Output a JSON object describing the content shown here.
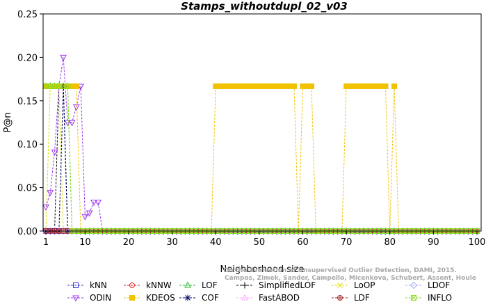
{
  "chart_data": {
    "type": "line",
    "title": "Stamps_withoutdupl_02_v03",
    "xlabel": "Neighborhood size",
    "ylabel": "P@n",
    "xlim": [
      1,
      100
    ],
    "ylim": [
      0,
      0.25
    ],
    "xticks": [
      1,
      10,
      20,
      30,
      40,
      50,
      60,
      70,
      80,
      90,
      100
    ],
    "yticks": [
      "0.00",
      "0.05",
      "0.10",
      "0.15",
      "0.20",
      "0.25"
    ],
    "grid": false,
    "legend_placement": "bottom",
    "watermark": [
      "Campos, Zimek, Sander, Campello, Micenkova, Schubert, Assent, Houle",
      "On the Evaluation of Unsupervised Outlier Detection, DAMI, 2015."
    ],
    "series": [
      {
        "name": "kNN",
        "color": "#3333dd",
        "marker": "square",
        "points": [
          [
            1,
            0
          ],
          [
            100,
            0
          ]
        ]
      },
      {
        "name": "kNNW",
        "color": "#dd2222",
        "marker": "circle",
        "points": [
          [
            1,
            0
          ],
          [
            100,
            0
          ]
        ]
      },
      {
        "name": "LOF",
        "color": "#22bb22",
        "marker": "triangle-up",
        "points": [
          [
            1,
            0.1667
          ],
          [
            2,
            0.1667
          ],
          [
            3,
            0.1667
          ],
          [
            4,
            0.1667
          ],
          [
            5,
            0.1667
          ],
          [
            6,
            0.1667
          ],
          [
            7,
            0
          ],
          [
            100,
            0
          ]
        ]
      },
      {
        "name": "SimplifiedLOF",
        "color": "#000000",
        "marker": "plus",
        "points": [
          [
            1,
            0
          ],
          [
            2,
            0
          ],
          [
            3,
            0
          ],
          [
            4,
            0.1667
          ],
          [
            5,
            0.1667
          ],
          [
            6,
            0
          ],
          [
            100,
            0
          ]
        ]
      },
      {
        "name": "LoOP",
        "color": "#dddd00",
        "marker": "x",
        "points": [
          [
            1,
            0
          ],
          [
            2,
            0.1667
          ],
          [
            3,
            0.1667
          ],
          [
            4,
            0.1667
          ],
          [
            5,
            0
          ],
          [
            100,
            0
          ]
        ]
      },
      {
        "name": "LDOF",
        "color": "#aaaaff",
        "marker": "diamond",
        "points": [
          [
            1,
            0
          ],
          [
            100,
            0
          ]
        ]
      },
      {
        "name": "ODIN",
        "color": "#9933ee",
        "marker": "triangle-down",
        "points": [
          [
            1,
            0.0278
          ],
          [
            2,
            0.0444
          ],
          [
            3,
            0.0909
          ],
          [
            4,
            0.1667
          ],
          [
            5,
            0.2
          ],
          [
            6,
            0.125
          ],
          [
            7,
            0.125
          ],
          [
            8,
            0.1429
          ],
          [
            9,
            0.1667
          ],
          [
            10,
            0.0167
          ],
          [
            11,
            0.0208
          ],
          [
            12,
            0.0333
          ],
          [
            13,
            0.0333
          ],
          [
            14,
            0
          ],
          [
            100,
            0
          ]
        ]
      },
      {
        "name": "KDEOS",
        "color": "#f2c200",
        "marker": "square-filled",
        "points": [
          [
            1,
            0.1667
          ],
          [
            2,
            0.1667
          ],
          [
            3,
            0.1667
          ],
          [
            4,
            0.1667
          ],
          [
            5,
            0.1667
          ],
          [
            6,
            0.1667
          ],
          [
            7,
            0.1667
          ],
          [
            8,
            0.1667
          ],
          [
            9,
            0
          ],
          [
            39,
            0
          ],
          [
            40,
            0.1667
          ],
          [
            41,
            0.1667
          ],
          [
            42,
            0.1667
          ],
          [
            43,
            0.1667
          ],
          [
            44,
            0.1667
          ],
          [
            45,
            0.1667
          ],
          [
            46,
            0.1667
          ],
          [
            47,
            0.1667
          ],
          [
            48,
            0.1667
          ],
          [
            49,
            0.1667
          ],
          [
            50,
            0.1667
          ],
          [
            51,
            0.1667
          ],
          [
            52,
            0.1667
          ],
          [
            53,
            0.1667
          ],
          [
            54,
            0.1667
          ],
          [
            55,
            0.1667
          ],
          [
            56,
            0.1667
          ],
          [
            57,
            0.1667
          ],
          [
            58,
            0.1667
          ],
          [
            59,
            0
          ],
          [
            60,
            0.1667
          ],
          [
            61,
            0.1667
          ],
          [
            62,
            0.1667
          ],
          [
            63,
            0
          ],
          [
            69,
            0
          ],
          [
            70,
            0.1667
          ],
          [
            71,
            0.1667
          ],
          [
            72,
            0.1667
          ],
          [
            73,
            0.1667
          ],
          [
            74,
            0.1667
          ],
          [
            75,
            0.1667
          ],
          [
            76,
            0.1667
          ],
          [
            77,
            0.1667
          ],
          [
            78,
            0.1667
          ],
          [
            79,
            0.1667
          ],
          [
            80,
            0
          ],
          [
            81,
            0.1667
          ],
          [
            82,
            0
          ],
          [
            100,
            0
          ]
        ]
      },
      {
        "name": "COF",
        "color": "#000066",
        "marker": "asterisk",
        "points": [
          [
            1,
            0
          ],
          [
            4,
            0
          ],
          [
            5,
            0.1667
          ],
          [
            6,
            0
          ],
          [
            100,
            0
          ]
        ]
      },
      {
        "name": "FastABOD",
        "color": "#ffaaff",
        "marker": "triangle-up",
        "points": [
          [
            1,
            0
          ],
          [
            100,
            0
          ]
        ]
      },
      {
        "name": "LDF",
        "color": "#aa2222",
        "marker": "circle-plus",
        "points": [
          [
            1,
            0
          ],
          [
            100,
            0
          ]
        ]
      },
      {
        "name": "INFLO",
        "color": "#88dd22",
        "marker": "square-x",
        "points": [
          [
            1,
            0.1667
          ],
          [
            2,
            0.1667
          ],
          [
            3,
            0.1667
          ],
          [
            4,
            0.1667
          ],
          [
            5,
            0.1667
          ],
          [
            6,
            0.1667
          ],
          [
            7,
            0
          ],
          [
            100,
            0
          ]
        ]
      }
    ]
  }
}
